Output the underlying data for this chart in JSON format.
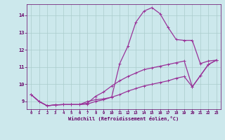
{
  "background_color": "#cce8ec",
  "grid_color": "#aacccc",
  "line_color": "#993399",
  "xlabel": "Windchill (Refroidissement éolien,°C)",
  "xlabel_color": "#660066",
  "tick_color": "#660066",
  "xlim": [
    -0.5,
    23.5
  ],
  "ylim": [
    8.55,
    14.65
  ],
  "yticks": [
    9,
    10,
    11,
    12,
    13,
    14
  ],
  "xticks": [
    0,
    1,
    2,
    3,
    4,
    5,
    6,
    7,
    8,
    9,
    10,
    11,
    12,
    13,
    14,
    15,
    16,
    17,
    18,
    19,
    20,
    21,
    22,
    23
  ],
  "line1_x": [
    0,
    1,
    2,
    3,
    4,
    5,
    6,
    7,
    8,
    9,
    10,
    11,
    12,
    13,
    14,
    15,
    16,
    17,
    18,
    19,
    20,
    21,
    22,
    23
  ],
  "line1_y": [
    9.4,
    9.0,
    8.75,
    8.8,
    8.82,
    8.82,
    8.82,
    9.0,
    9.1,
    9.15,
    9.25,
    11.2,
    12.2,
    13.6,
    14.25,
    14.45,
    14.1,
    13.3,
    12.6,
    12.55,
    12.55,
    11.2,
    11.35,
    11.4
  ],
  "line2_x": [
    0,
    1,
    2,
    3,
    4,
    5,
    6,
    7,
    8,
    9,
    10,
    11,
    12,
    13,
    14,
    15,
    16,
    17,
    18,
    19,
    20,
    21,
    22,
    23
  ],
  "line2_y": [
    9.4,
    9.0,
    8.75,
    8.8,
    8.82,
    8.82,
    8.82,
    8.9,
    9.3,
    9.55,
    9.9,
    10.2,
    10.45,
    10.65,
    10.85,
    10.95,
    11.05,
    11.15,
    11.25,
    11.35,
    9.85,
    10.5,
    11.15,
    11.4
  ],
  "line3_x": [
    0,
    1,
    2,
    3,
    4,
    5,
    6,
    7,
    8,
    9,
    10,
    11,
    12,
    13,
    14,
    15,
    16,
    17,
    18,
    19,
    20,
    21,
    22,
    23
  ],
  "line3_y": [
    9.4,
    9.0,
    8.75,
    8.8,
    8.82,
    8.82,
    8.82,
    8.85,
    9.0,
    9.1,
    9.25,
    9.4,
    9.6,
    9.75,
    9.9,
    10.0,
    10.1,
    10.2,
    10.35,
    10.45,
    9.85,
    10.5,
    11.15,
    11.4
  ]
}
